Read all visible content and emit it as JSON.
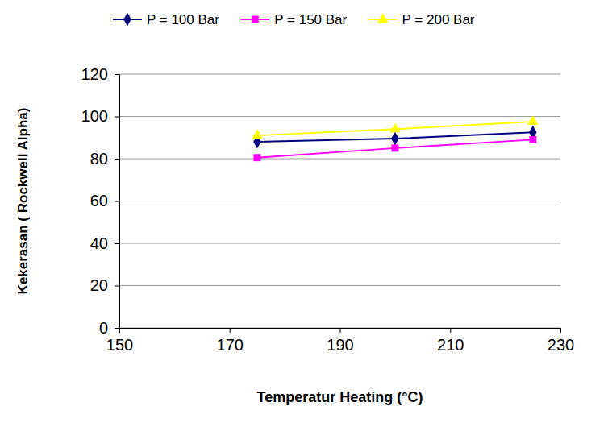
{
  "chart_data": {
    "type": "line",
    "x": [
      175,
      200,
      225
    ],
    "series": [
      {
        "name": "P = 100 Bar",
        "color": "#000080",
        "marker": "diamond",
        "line_style": "solid",
        "values": [
          88,
          89.5,
          92.5
        ]
      },
      {
        "name": "P = 150 Bar",
        "color": "#ff00ff",
        "marker": "square",
        "line_style": "solid",
        "values": [
          80.5,
          85,
          89
        ]
      },
      {
        "name": "P = 200 Bar",
        "color": "#ffff00",
        "marker": "triangle",
        "line_style": "solid",
        "values": [
          91,
          94,
          97.5
        ]
      }
    ],
    "x_label": "Temperatur Heating (°C)",
    "y_label": "Kekerasan ( Rockwell Alpha)",
    "xlim": [
      150,
      230
    ],
    "xticks": [
      150,
      170,
      190,
      210,
      230
    ],
    "ylim": [
      0,
      120
    ],
    "yticks": [
      0,
      20,
      40,
      60,
      80,
      100,
      120
    ],
    "grid": true,
    "legend": "top"
  }
}
